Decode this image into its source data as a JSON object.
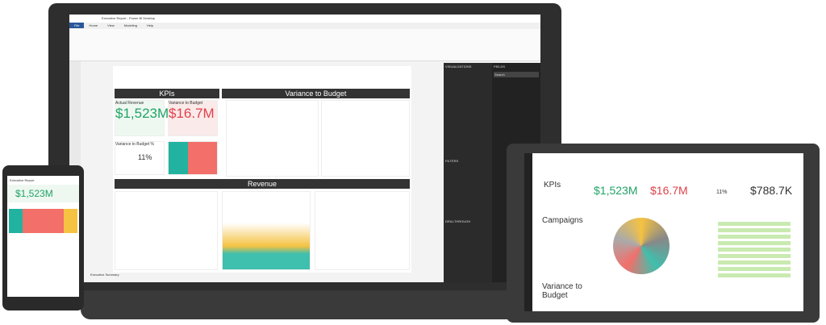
{
  "app": {
    "title": "Executive Report - Power BI Desktop",
    "ribbon_tabs": [
      "File",
      "Home",
      "View",
      "Modeling",
      "Help"
    ]
  },
  "report": {
    "sections": {
      "kpis": "KPIs",
      "variance": "Variance to Budget",
      "revenue": "Revenue"
    },
    "kpi_revenue": {
      "label": "Actual Revenue",
      "value": "$1,523M"
    },
    "kpi_variance": {
      "label": "Variance to Budget",
      "value": "$16.7M"
    },
    "gauge": {
      "label": "Variance to Budget %",
      "value": "11%"
    },
    "page_tab": "Executive Summary"
  },
  "panes": {
    "visualizations": "VISUALIZATIONS",
    "fields": "FIELDS",
    "filters": "FILTERS",
    "drillthrough": "DRILLTHROUGH",
    "search_placeholder": "Search"
  },
  "tablet": {
    "tiles": {
      "kpis": "KPIs",
      "campaigns": "Campaigns",
      "variance": "Variance to Budget"
    },
    "values": {
      "revenue": "$1,523M",
      "variance": "$16.7M",
      "gauge": "11%",
      "remaining": "$788.7K"
    }
  },
  "phone": {
    "title": "Executive Report",
    "value": "$1,523M"
  },
  "colors": {
    "accent": "#f2c811",
    "green": "#21a366",
    "red": "#e0414a",
    "dark": "#333333"
  }
}
